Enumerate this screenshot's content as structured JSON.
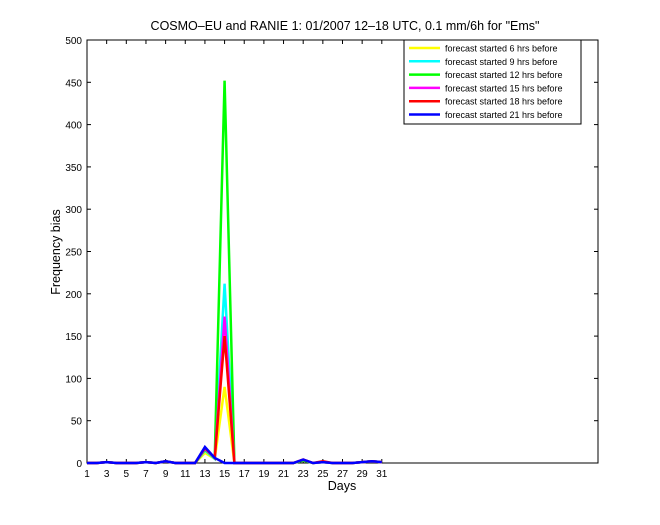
{
  "chart_data": {
    "type": "line",
    "title": "COSMO–EU and RANIE 1: 01/2007 12–18 UTC, 0.1 mm/6h for \"Ems\"",
    "xlabel": "Days",
    "ylabel": "Frequency bias",
    "xlim": [
      1,
      53
    ],
    "ylim": [
      0,
      500
    ],
    "xticks": [
      1,
      3,
      5,
      7,
      9,
      11,
      13,
      15,
      17,
      19,
      21,
      23,
      25,
      27,
      29,
      31
    ],
    "yticks": [
      0,
      50,
      100,
      150,
      200,
      250,
      300,
      350,
      400,
      450,
      500
    ],
    "grid": false,
    "legend_position": "top-right",
    "x": [
      1,
      2,
      3,
      4,
      5,
      6,
      7,
      8,
      9,
      10,
      11,
      12,
      13,
      14,
      15,
      16,
      17,
      18,
      19,
      20,
      21,
      22,
      23,
      24,
      25,
      26,
      27,
      28,
      29,
      30,
      31
    ],
    "series": [
      {
        "name": "forecast started 6 hrs before",
        "color": "#ffff00",
        "values": [
          0,
          0,
          1,
          0,
          0,
          0,
          1,
          0,
          2,
          0,
          0,
          0,
          12,
          5,
          90,
          0,
          0,
          0,
          0,
          0,
          0,
          0,
          3,
          0,
          1,
          0,
          0,
          0,
          1,
          2,
          1
        ]
      },
      {
        "name": "forecast started 9 hrs before",
        "color": "#00ffff",
        "values": [
          0,
          0,
          1,
          0,
          0,
          0,
          1,
          0,
          2,
          0,
          0,
          0,
          15,
          5,
          212,
          0,
          0,
          0,
          0,
          0,
          0,
          0,
          3,
          0,
          1,
          0,
          0,
          0,
          1,
          2,
          1
        ]
      },
      {
        "name": "forecast started 12 hrs before",
        "color": "#00ff00",
        "values": [
          0,
          0,
          1,
          0,
          0,
          0,
          1,
          0,
          2,
          0,
          0,
          0,
          16,
          6,
          452,
          0,
          0,
          0,
          0,
          0,
          0,
          0,
          3,
          0,
          1,
          0,
          0,
          0,
          1,
          2,
          1
        ]
      },
      {
        "name": "forecast started 15 hrs before",
        "color": "#ff00ff",
        "values": [
          0,
          0,
          1,
          0,
          0,
          0,
          1,
          0,
          2,
          0,
          0,
          0,
          17,
          6,
          173,
          0,
          0,
          0,
          0,
          0,
          0,
          0,
          4,
          0,
          1,
          0,
          0,
          0,
          1,
          2,
          1
        ]
      },
      {
        "name": "forecast started 18 hrs before",
        "color": "#ff0000",
        "values": [
          0,
          0,
          1,
          0,
          0,
          0,
          1,
          0,
          2,
          0,
          0,
          0,
          18,
          6,
          150,
          0,
          0,
          0,
          0,
          0,
          0,
          0,
          4,
          0,
          2,
          0,
          0,
          0,
          1,
          2,
          1
        ]
      },
      {
        "name": "forecast started 21 hrs before",
        "color": "#0000ff",
        "values": [
          0,
          0,
          1,
          0,
          0,
          0,
          1,
          0,
          2,
          0,
          0,
          0,
          19,
          6,
          0,
          0,
          0,
          0,
          0,
          0,
          0,
          0,
          4,
          0,
          1,
          0,
          0,
          0,
          1,
          2,
          1
        ]
      }
    ]
  }
}
